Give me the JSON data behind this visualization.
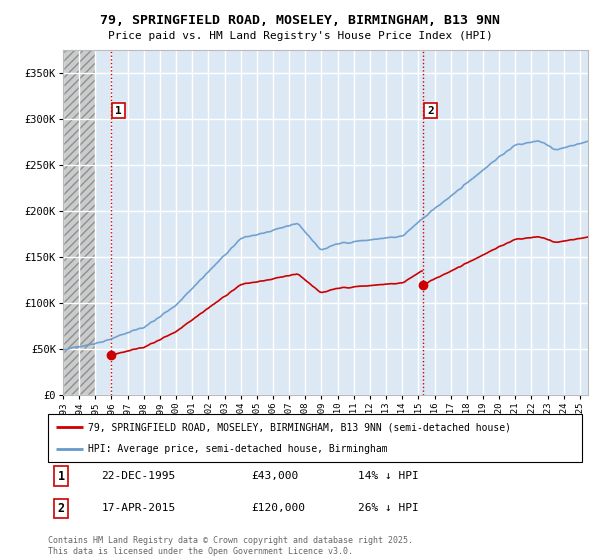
{
  "title_line1": "79, SPRINGFIELD ROAD, MOSELEY, BIRMINGHAM, B13 9NN",
  "title_line2": "Price paid vs. HM Land Registry's House Price Index (HPI)",
  "background_color": "#ffffff",
  "plot_bg_color": "#dce9f5",
  "hatch_color": "#aaaaaa",
  "grid_color": "#ffffff",
  "red_line_color": "#cc0000",
  "blue_line_color": "#6699cc",
  "vline_color": "#cc0000",
  "legend_label_red": "79, SPRINGFIELD ROAD, MOSELEY, BIRMINGHAM, B13 9NN (semi-detached house)",
  "legend_label_blue": "HPI: Average price, semi-detached house, Birmingham",
  "sale1_date": "22-DEC-1995",
  "sale1_price": "£43,000",
  "sale1_hpi": "14% ↓ HPI",
  "sale2_date": "17-APR-2015",
  "sale2_price": "£120,000",
  "sale2_hpi": "26% ↓ HPI",
  "footer": "Contains HM Land Registry data © Crown copyright and database right 2025.\nThis data is licensed under the Open Government Licence v3.0.",
  "ylim": [
    0,
    375000
  ],
  "yticks": [
    0,
    50000,
    100000,
    150000,
    200000,
    250000,
    300000,
    350000
  ],
  "ytick_labels": [
    "£0",
    "£50K",
    "£100K",
    "£150K",
    "£200K",
    "£250K",
    "£300K",
    "£350K"
  ],
  "sale1_x": 1995.97,
  "sale1_y": 43000,
  "sale2_x": 2015.29,
  "sale2_y": 120000,
  "xlim_left": 1993.0,
  "xlim_right": 2025.5
}
